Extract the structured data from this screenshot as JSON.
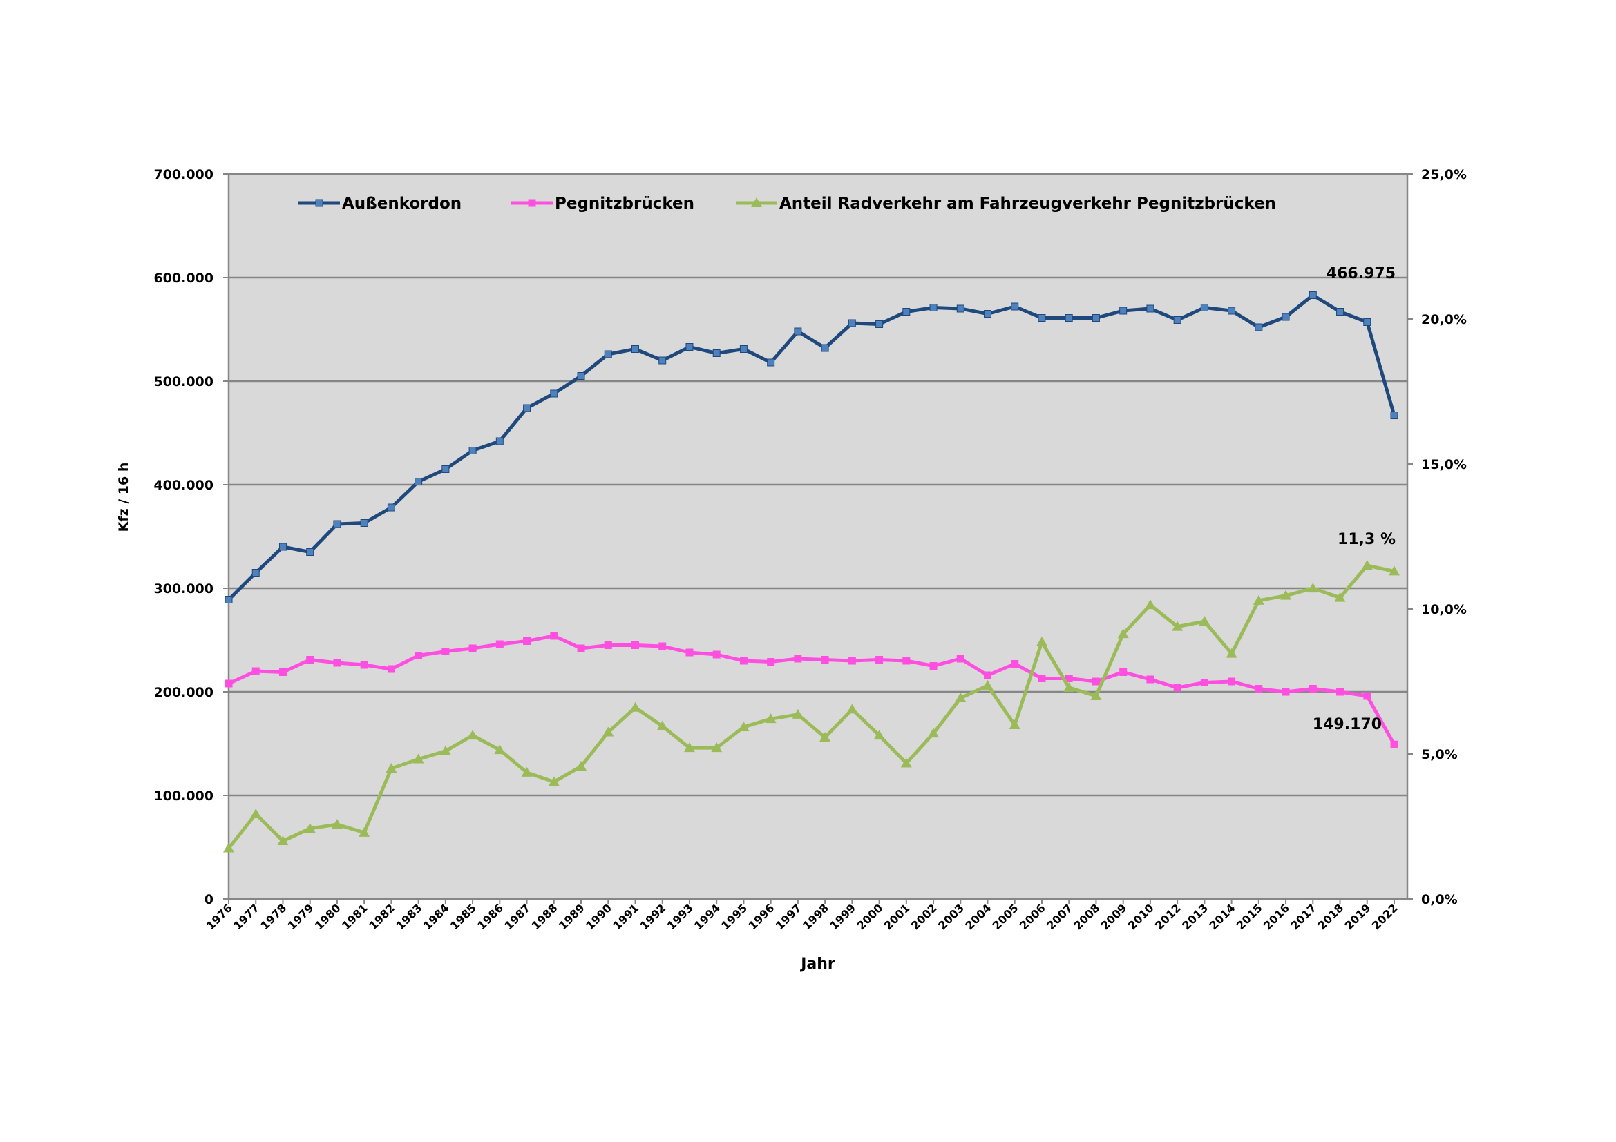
{
  "chart_data": {
    "type": "line",
    "title": "",
    "xlabel": "Jahr",
    "ylabel": "Kfz / 16 h",
    "y2label": "",
    "ylim": [
      0,
      700000
    ],
    "y2lim": [
      0,
      25
    ],
    "yticks": [
      "0",
      "100.000",
      "200.000",
      "300.000",
      "400.000",
      "500.000",
      "600.000",
      "700.000"
    ],
    "y2ticks": [
      "0,0%",
      "5,0%",
      "10,0%",
      "15,0%",
      "20,0%",
      "25,0%"
    ],
    "grid": true,
    "legend": "top",
    "categories": [
      "1976",
      "1977",
      "1978",
      "1979",
      "1980",
      "1981",
      "1982",
      "1983",
      "1984",
      "1985",
      "1986",
      "1987",
      "1988",
      "1989",
      "1990",
      "1991",
      "1992",
      "1993",
      "1994",
      "1995",
      "1996",
      "1997",
      "1998",
      "1999",
      "2000",
      "2001",
      "2002",
      "2003",
      "2004",
      "2005",
      "2006",
      "2007",
      "2008",
      "2009",
      "2010",
      "2012",
      "2013",
      "2014",
      "2015",
      "2016",
      "2017",
      "2018",
      "2019",
      "2022"
    ],
    "series": [
      {
        "name": "Außenkordon",
        "axis": "left",
        "color": "#1f497d",
        "marker": "square",
        "marker_color": "#4f81bd",
        "values": [
          289000,
          315000,
          340000,
          335000,
          362000,
          363000,
          378000,
          403000,
          415000,
          433000,
          442000,
          474000,
          488000,
          505000,
          526000,
          531000,
          520000,
          533000,
          527000,
          531000,
          518000,
          548000,
          532000,
          556000,
          555000,
          567000,
          571000,
          570000,
          565000,
          572000,
          561000,
          561000,
          561000,
          568000,
          570000,
          559000,
          571000,
          568000,
          552000,
          562000,
          583000,
          567000,
          557000,
          466975
        ]
      },
      {
        "name": "Pegnitzbrücken",
        "axis": "left",
        "color": "#ff4fe0",
        "marker": "square",
        "marker_color": "#ff4fe0",
        "values": [
          208000,
          220000,
          219000,
          231000,
          228000,
          226000,
          222000,
          235000,
          239000,
          242000,
          246000,
          249000,
          254000,
          242000,
          245000,
          245000,
          244000,
          238000,
          236000,
          230000,
          229000,
          232000,
          231000,
          230000,
          231000,
          230000,
          225000,
          232000,
          216000,
          227000,
          213000,
          213000,
          210000,
          219000,
          212000,
          204000,
          209000,
          210000,
          203000,
          200000,
          203000,
          200000,
          196000,
          149170
        ]
      },
      {
        "name": "Anteil  Radverkehr am Fahrzeugverkehr Pegnitzbrücken",
        "axis": "right",
        "color": "#9bbb59",
        "marker": "triangle",
        "marker_color": "#9bbb59",
        "values": [
          1.75,
          2.93,
          2.0,
          2.43,
          2.57,
          2.29,
          4.5,
          4.82,
          5.1,
          5.64,
          5.14,
          4.36,
          4.04,
          4.57,
          5.75,
          6.6,
          5.96,
          5.21,
          5.21,
          5.93,
          6.21,
          6.36,
          5.57,
          6.54,
          5.64,
          4.68,
          5.71,
          6.93,
          7.36,
          6.0,
          8.86,
          7.29,
          7.0,
          9.14,
          10.14,
          9.39,
          9.57,
          8.46,
          10.29,
          10.46,
          10.71,
          10.39,
          11.5,
          11.3
        ]
      }
    ],
    "annotations": [
      "466.975",
      "11,3 %",
      "149.170"
    ]
  }
}
